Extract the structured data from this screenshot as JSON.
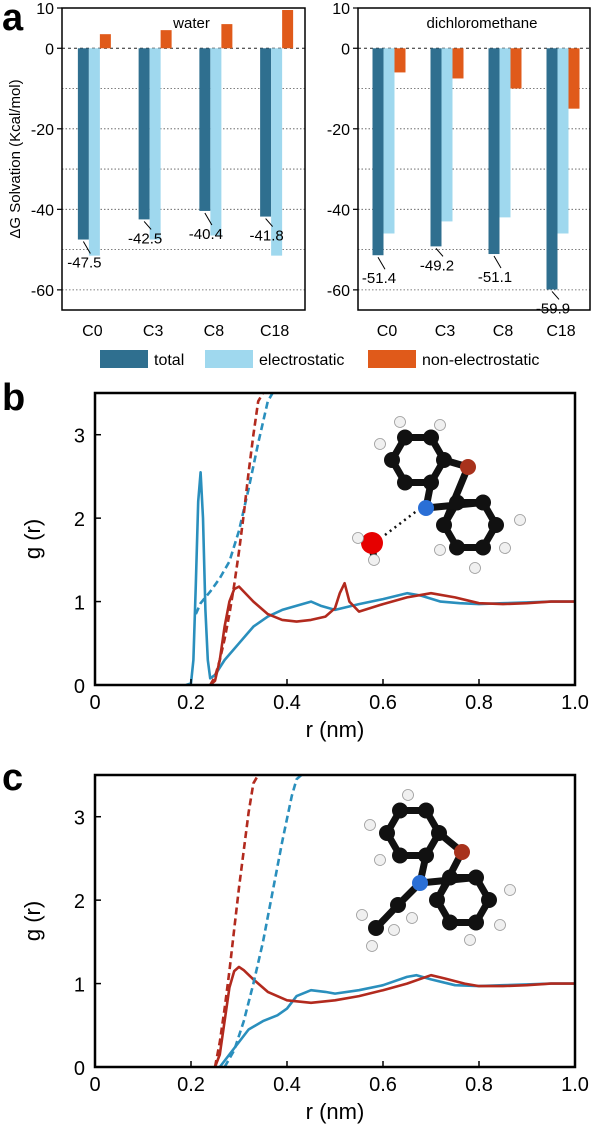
{
  "panel_labels": [
    "a",
    "b",
    "c"
  ],
  "colors": {
    "total": "#2f6f8f",
    "electrostatic": "#9fd8ee",
    "nonelectrostatic": "#e05a1a",
    "blue_curve": "#2a8fbd",
    "red_curve": "#b22a1e",
    "atom_c": "#111111",
    "atom_h": "#f0f0f0",
    "atom_n": "#2a6fd6",
    "atom_o_ring": "#a8321c",
    "atom_o_water": "#e60000"
  },
  "legend": {
    "total": "total",
    "electrostatic": "electrostatic",
    "nonelectrostatic": "non-electrostatic"
  },
  "chart_data": [
    {
      "id": "a-water",
      "type": "bar",
      "title": "water",
      "ylabel": "ΔG Solvation (Kcal/mol)",
      "xlabel": "",
      "ylim": [
        -65,
        10
      ],
      "yticks": [
        10,
        0,
        -20,
        -40,
        -60
      ],
      "categories": [
        "C0",
        "C3",
        "C8",
        "C18"
      ],
      "series": [
        {
          "name": "total",
          "values": [
            -47.5,
            -42.5,
            -40.4,
            -41.8
          ]
        },
        {
          "name": "electrostatic",
          "values": [
            -51.5,
            -47.5,
            -46.5,
            -51.5
          ]
        },
        {
          "name": "non-electrostatic",
          "values": [
            3.5,
            4.5,
            6.0,
            9.5
          ]
        }
      ],
      "labels": [
        "-47.5",
        "-42.5",
        "-40.4",
        "-41.8"
      ]
    },
    {
      "id": "a-dcm",
      "type": "bar",
      "title": "dichloromethane",
      "ylabel": "",
      "xlabel": "",
      "ylim": [
        -65,
        10
      ],
      "yticks": [
        10,
        0,
        -20,
        -40,
        -60
      ],
      "categories": [
        "C0",
        "C3",
        "C8",
        "C18"
      ],
      "series": [
        {
          "name": "total",
          "values": [
            -51.4,
            -49.2,
            -51.1,
            -59.9
          ]
        },
        {
          "name": "electrostatic",
          "values": [
            -46.0,
            -43.0,
            -42.0,
            -46.0
          ]
        },
        {
          "name": "non-electrostatic",
          "values": [
            -6.0,
            -7.5,
            -10.0,
            -15.0
          ]
        }
      ],
      "labels": [
        "-51.4",
        "-49.2",
        "-51.1",
        "-59.9"
      ]
    },
    {
      "id": "b",
      "type": "line",
      "xlabel": "r (nm)",
      "ylabel": "g (r)",
      "xlim": [
        0,
        1.0
      ],
      "ylim": [
        0,
        3.5
      ],
      "xticks": [
        "0",
        "0.2",
        "0.4",
        "0.6",
        "0.8",
        "1.0"
      ],
      "yticks": [
        "0",
        "1",
        "2",
        "3"
      ],
      "series": [
        {
          "name": "blue",
          "style": "solid",
          "x": [
            0.19,
            0.2,
            0.205,
            0.21,
            0.215,
            0.22,
            0.225,
            0.23,
            0.235,
            0.24,
            0.25,
            0.27,
            0.3,
            0.33,
            0.36,
            0.39,
            0.42,
            0.45,
            0.47,
            0.5,
            0.55,
            0.6,
            0.65,
            0.68,
            0.72,
            0.76,
            0.8,
            0.85,
            0.9,
            0.95,
            1.0
          ],
          "y": [
            0,
            0.02,
            0.3,
            1.2,
            2.2,
            2.55,
            2.0,
            0.9,
            0.3,
            0.08,
            0.12,
            0.3,
            0.5,
            0.7,
            0.82,
            0.9,
            0.95,
            1.0,
            0.95,
            0.9,
            0.97,
            1.03,
            1.1,
            1.07,
            1.0,
            0.98,
            0.97,
            0.98,
            0.99,
            1.0,
            1.0
          ]
        },
        {
          "name": "red",
          "style": "solid",
          "x": [
            0.24,
            0.25,
            0.26,
            0.27,
            0.28,
            0.29,
            0.3,
            0.31,
            0.33,
            0.36,
            0.39,
            0.42,
            0.45,
            0.48,
            0.5,
            0.51,
            0.52,
            0.53,
            0.55,
            0.6,
            0.65,
            0.7,
            0.75,
            0.8,
            0.85,
            0.9,
            0.95,
            1.0
          ],
          "y": [
            0,
            0.05,
            0.3,
            0.7,
            1.0,
            1.15,
            1.18,
            1.12,
            1.0,
            0.85,
            0.78,
            0.76,
            0.78,
            0.82,
            0.92,
            1.1,
            1.22,
            1.0,
            0.88,
            0.97,
            1.05,
            1.1,
            1.05,
            0.98,
            0.97,
            0.98,
            1.0,
            1.0
          ]
        },
        {
          "name": "blue-dashed",
          "style": "dashed",
          "x": [
            0.21,
            0.22,
            0.24,
            0.26,
            0.28,
            0.3,
            0.32,
            0.34,
            0.36,
            0.37
          ],
          "y": [
            0.85,
            0.98,
            1.12,
            1.28,
            1.48,
            1.85,
            2.35,
            2.9,
            3.4,
            3.5
          ]
        },
        {
          "name": "red-dashed",
          "style": "dashed",
          "x": [
            0.24,
            0.25,
            0.26,
            0.27,
            0.28,
            0.29,
            0.3,
            0.31,
            0.32,
            0.33,
            0.34,
            0.35
          ],
          "y": [
            0.0,
            0.1,
            0.3,
            0.55,
            0.85,
            1.2,
            1.6,
            2.05,
            2.55,
            3.0,
            3.4,
            3.5
          ]
        }
      ]
    },
    {
      "id": "c",
      "type": "line",
      "xlabel": "r (nm)",
      "ylabel": "g (r)",
      "xlim": [
        0,
        1.0
      ],
      "ylim": [
        0,
        3.5
      ],
      "xticks": [
        "0",
        "0.2",
        "0.4",
        "0.6",
        "0.8",
        "1.0"
      ],
      "yticks": [
        "0",
        "1",
        "2",
        "3"
      ],
      "series": [
        {
          "name": "blue",
          "style": "solid",
          "x": [
            0.26,
            0.28,
            0.3,
            0.32,
            0.35,
            0.38,
            0.4,
            0.42,
            0.45,
            0.48,
            0.5,
            0.55,
            0.6,
            0.65,
            0.67,
            0.7,
            0.75,
            0.8,
            0.85,
            0.9,
            0.95,
            1.0
          ],
          "y": [
            0,
            0.15,
            0.3,
            0.45,
            0.55,
            0.62,
            0.7,
            0.85,
            0.92,
            0.9,
            0.88,
            0.92,
            0.98,
            1.08,
            1.1,
            1.05,
            0.98,
            0.97,
            0.98,
            0.99,
            1.0,
            1.0
          ]
        },
        {
          "name": "red",
          "style": "solid",
          "x": [
            0.25,
            0.26,
            0.27,
            0.28,
            0.29,
            0.3,
            0.31,
            0.33,
            0.36,
            0.4,
            0.45,
            0.5,
            0.55,
            0.6,
            0.65,
            0.7,
            0.73,
            0.77,
            0.8,
            0.85,
            0.9,
            0.95,
            1.0
          ],
          "y": [
            0,
            0.15,
            0.55,
            0.95,
            1.15,
            1.2,
            1.16,
            1.05,
            0.9,
            0.8,
            0.77,
            0.8,
            0.85,
            0.92,
            1.0,
            1.1,
            1.06,
            1.0,
            0.97,
            0.97,
            0.98,
            1.0,
            1.0
          ]
        },
        {
          "name": "blue-dashed",
          "style": "dashed",
          "x": [
            0.27,
            0.29,
            0.31,
            0.33,
            0.35,
            0.37,
            0.39,
            0.41,
            0.42,
            0.43
          ],
          "y": [
            0.0,
            0.2,
            0.55,
            1.0,
            1.5,
            2.1,
            2.7,
            3.25,
            3.45,
            3.5
          ]
        },
        {
          "name": "red-dashed",
          "style": "dashed",
          "x": [
            0.25,
            0.26,
            0.27,
            0.28,
            0.29,
            0.3,
            0.31,
            0.32,
            0.33,
            0.34
          ],
          "y": [
            0.0,
            0.3,
            0.7,
            1.15,
            1.65,
            2.15,
            2.6,
            3.05,
            3.4,
            3.5
          ]
        }
      ]
    }
  ]
}
